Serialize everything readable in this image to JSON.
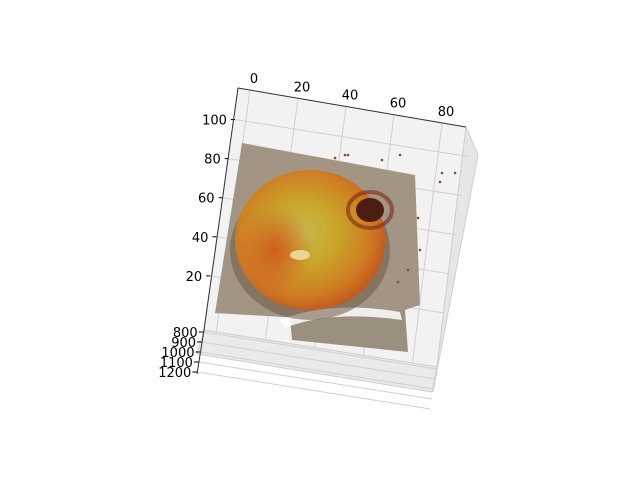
{
  "chart_data": {
    "type": "scatter",
    "projection": "3d",
    "x_ticks": [
      "0",
      "20",
      "40",
      "60",
      "80"
    ],
    "y_ticks": [
      "800",
      "900",
      "1000",
      "1100",
      "1200"
    ],
    "z_ticks": [
      "20",
      "40",
      "60",
      "80",
      "100"
    ],
    "xlim": [
      -5,
      90
    ],
    "ylim": [
      780,
      1220
    ],
    "zlim": [
      0,
      110
    ],
    "grid": true,
    "legend": "none",
    "subject": "3d point cloud of a red and yellow apple on a grey surface",
    "colors": {
      "pane": "#f2f2f2",
      "grid": "#d0d0d0",
      "background": "#a39584",
      "apple_yellow": "#c9a62a",
      "apple_red": "#b8401a",
      "stem_dark": "#4a1e10"
    }
  }
}
